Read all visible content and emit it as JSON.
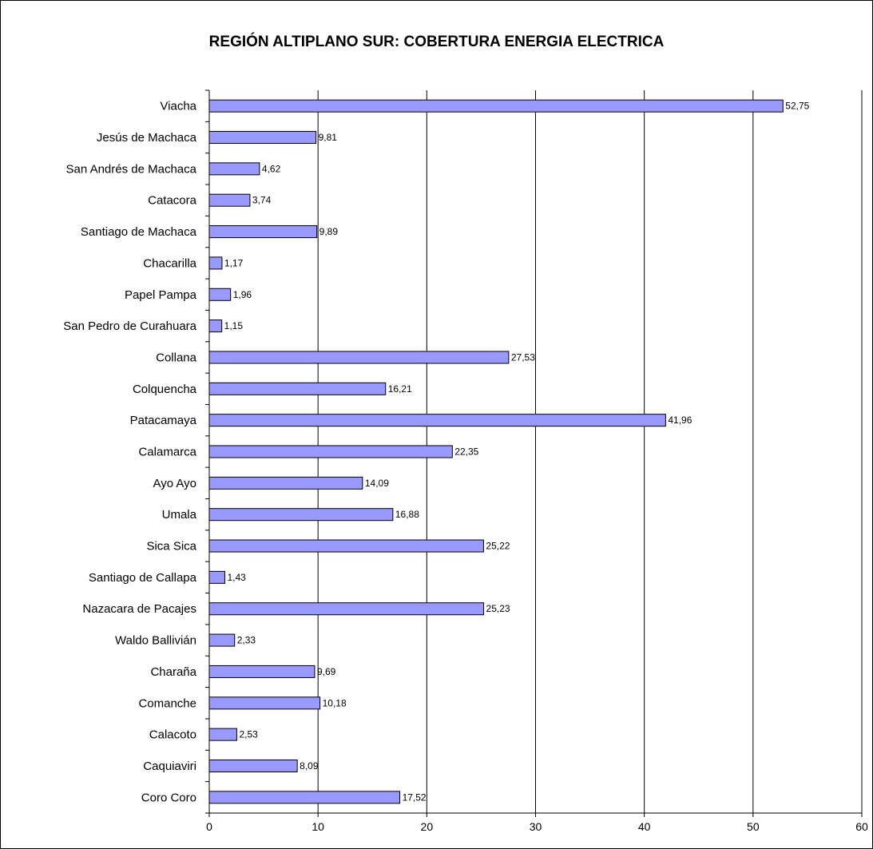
{
  "chart_data": {
    "type": "bar",
    "orientation": "horizontal",
    "title": "REGIÓN ALTIPLANO SUR: COBERTURA ENERGIA ELECTRICA",
    "xlabel": "",
    "ylabel": "",
    "categories": [
      "Viacha",
      "Jesús de Machaca",
      "San Andrés de Machaca",
      "Catacora",
      "Santiago de Machaca",
      "Chacarilla",
      "Papel Pampa",
      "San Pedro de Curahuara",
      "Collana",
      "Colquencha",
      "Patacamaya",
      "Calamarca",
      "Ayo Ayo",
      "Umala",
      "Sica Sica",
      "Santiago de Callapa",
      "Nazacara de Pacajes",
      "Waldo Ballivián",
      "Charaña",
      "Comanche",
      "Calacoto",
      "Caquiaviri",
      "Coro Coro"
    ],
    "values": [
      52.75,
      9.81,
      4.62,
      3.74,
      9.89,
      1.17,
      1.96,
      1.15,
      27.53,
      16.21,
      41.96,
      22.35,
      14.09,
      16.88,
      25.22,
      1.43,
      25.23,
      2.33,
      9.69,
      10.18,
      2.53,
      8.09,
      17.52
    ],
    "data_labels": [
      "52,75",
      "9,81",
      "4,62",
      "3,74",
      "9,89",
      "1,17",
      "1,96",
      "1,15",
      "27,53",
      "16,21",
      "41,96",
      "22,35",
      "14,09",
      "16,88",
      "25,22",
      "1,43",
      "25,23",
      "2,33",
      "9,69",
      "10,18",
      "2,53",
      "8,09",
      "17,52"
    ],
    "xlim": [
      0,
      60
    ],
    "xticks": [
      0,
      10,
      20,
      30,
      40,
      50,
      60
    ],
    "grid": "vertical",
    "legend": "none",
    "bar_color": "#9999FF",
    "bar_edge_color": "#000000"
  }
}
